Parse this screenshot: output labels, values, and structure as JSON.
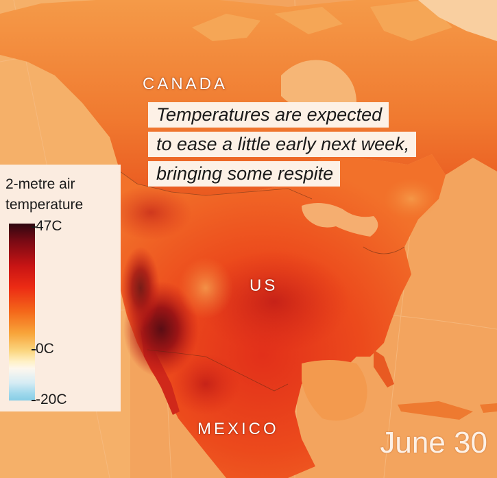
{
  "map": {
    "labels": {
      "canada": "CANADA",
      "us": "US",
      "mexico": "MEXICO"
    },
    "caption_lines": [
      "Temperatures are expected",
      "to ease a little early next week,",
      "bringing some respite"
    ],
    "date": "June 30"
  },
  "legend": {
    "title_lines": [
      "2-metre air",
      "temperature"
    ],
    "max_label": "47C",
    "zero_label": "0C",
    "min_label": "-20C",
    "scale": {
      "max": 47,
      "zero": 0,
      "min": -20,
      "unit": "C"
    },
    "colors": {
      "hottest": "#2e0710",
      "very_hot": "#c81414",
      "hot": "#f4691a",
      "warm": "#fbd680",
      "neutral": "#fdf7ee",
      "cold": "#86cde6"
    }
  }
}
